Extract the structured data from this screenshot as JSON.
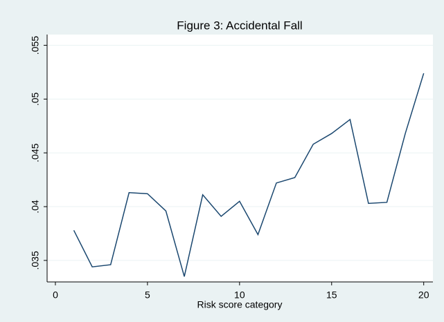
{
  "chart_data": {
    "type": "line",
    "title": "Figure 3: Accidental Fall",
    "xlabel": "Risk score category",
    "x": [
      1,
      2,
      3,
      4,
      5,
      6,
      7,
      8,
      9,
      10,
      11,
      12,
      13,
      14,
      15,
      16,
      17,
      18,
      19,
      20
    ],
    "series": [
      {
        "name": "Accidental Fall",
        "color": "#1a476f",
        "values": [
          0.0378,
          0.0344,
          0.0346,
          0.0413,
          0.0412,
          0.0396,
          0.0335,
          0.0411,
          0.0391,
          0.0405,
          0.0374,
          0.0422,
          0.0427,
          0.0458,
          0.0468,
          0.0481,
          0.0403,
          0.0404,
          0.0468,
          0.0524
        ]
      }
    ],
    "xlim": [
      -0.45,
      20.5
    ],
    "xticks": [
      0,
      5,
      10,
      15,
      20
    ],
    "ylim": [
      0.033,
      0.056
    ],
    "yticks": [
      {
        "value": 0.035,
        "label": ".035"
      },
      {
        "value": 0.04,
        "label": ".04"
      },
      {
        "value": 0.045,
        "label": ".045"
      },
      {
        "value": 0.05,
        "label": ".05"
      },
      {
        "value": 0.055,
        "label": ".055"
      }
    ],
    "grid": true
  }
}
